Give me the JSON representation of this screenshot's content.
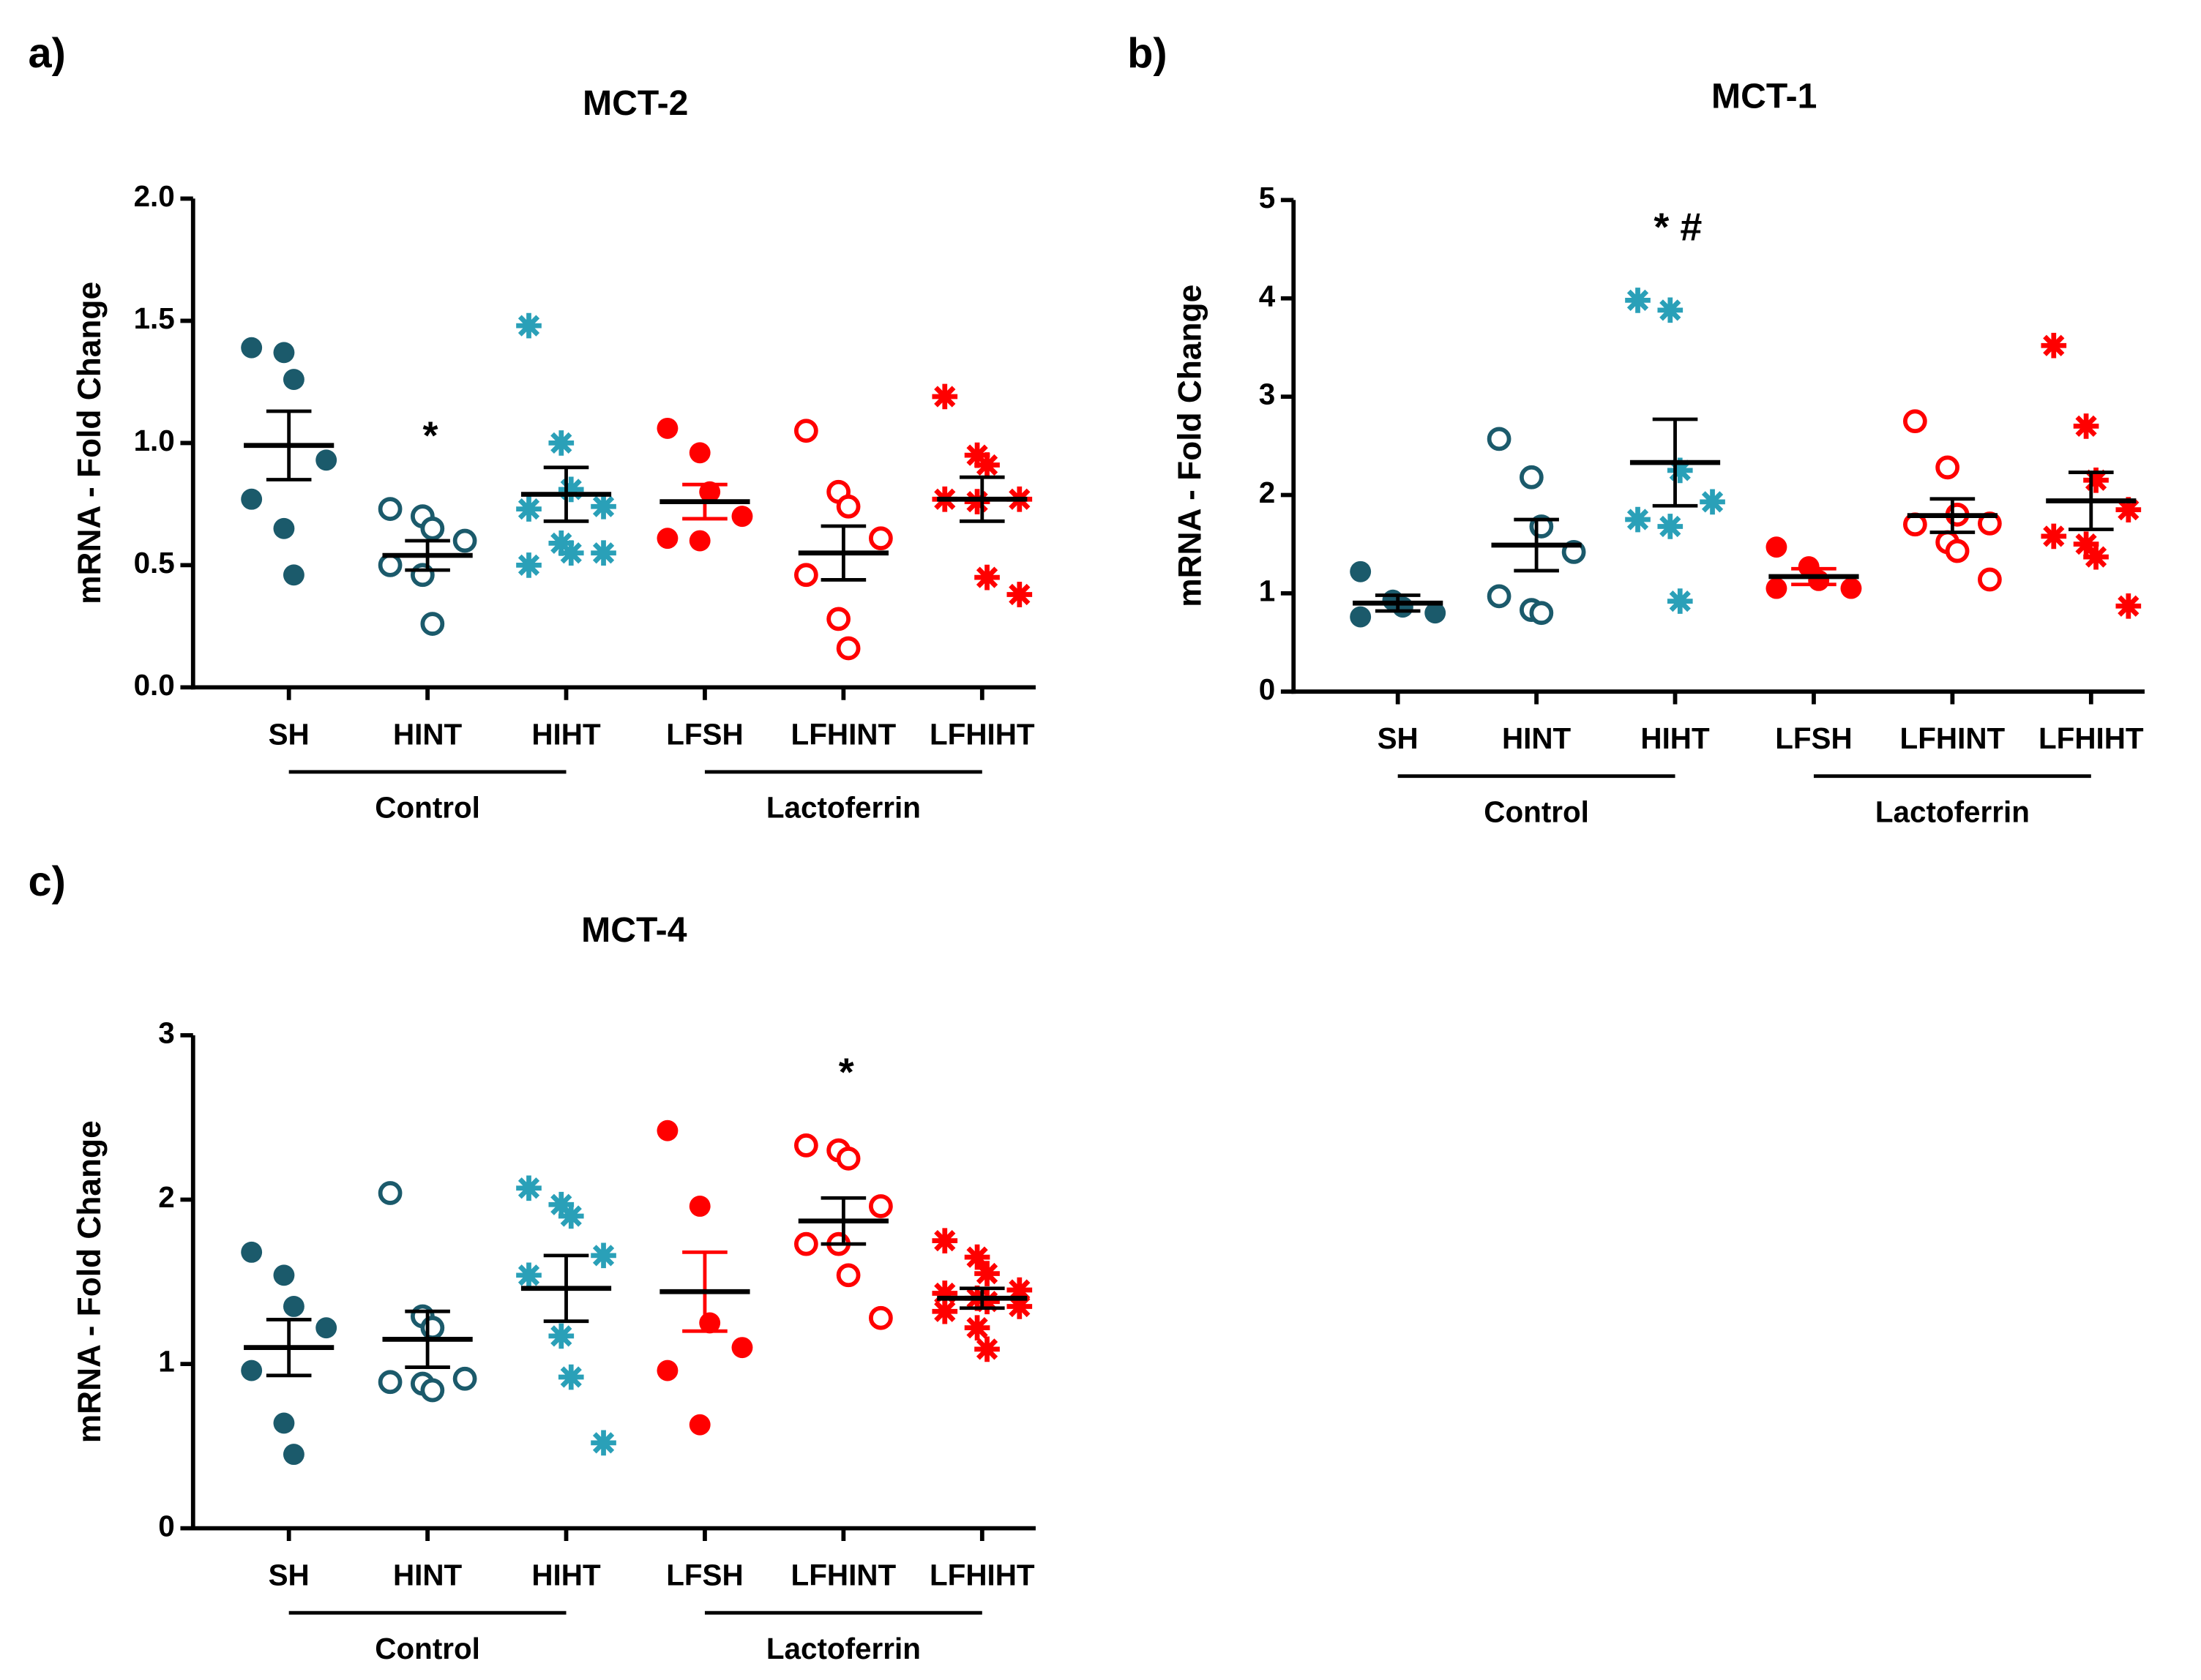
{
  "chart_data": [
    {
      "type": "dot",
      "panel_label": "a)",
      "title": "MCT-2",
      "ylabel": "mRNA - Fold Change",
      "ylim": [
        0,
        2
      ],
      "yticks": [
        {
          "value": 0,
          "label": "0.0"
        },
        {
          "value": 0.5,
          "label": "0.5"
        },
        {
          "value": 1,
          "label": "1.0"
        },
        {
          "value": 1.5,
          "label": "1.5"
        },
        {
          "value": 2,
          "label": "2.0"
        }
      ],
      "categories": [
        "SH",
        "HINT",
        "HIHT",
        "LFSH",
        "LFHINT",
        "LFHIHT"
      ],
      "colors": [
        "#1b5a6b",
        "#1b5a6b",
        "#2aa0b8",
        "#ff0000",
        "#ff0000",
        "#ff0000"
      ],
      "markers": [
        "filled",
        "open",
        "asterisk",
        "filled",
        "open",
        "asterisk"
      ],
      "values": [
        [
          1.39,
          1.37,
          1.26,
          0.93,
          0.77,
          0.65,
          0.46
        ],
        [
          0.73,
          0.7,
          0.65,
          0.6,
          0.5,
          0.46,
          0.26
        ],
        [
          1.48,
          1.0,
          0.81,
          0.74,
          0.73,
          0.59,
          0.55,
          0.55,
          0.5
        ],
        [
          1.06,
          0.96,
          0.8,
          0.7,
          0.61,
          0.6
        ],
        [
          1.05,
          0.8,
          0.74,
          0.61,
          0.46,
          0.28,
          0.16
        ],
        [
          1.19,
          0.95,
          0.91,
          0.77,
          0.77,
          0.76,
          0.45,
          0.38
        ]
      ],
      "means": [
        0.99,
        0.54,
        0.79,
        0.76,
        0.55,
        0.77
      ],
      "sems": [
        0.14,
        0.06,
        0.11,
        0.07,
        0.11,
        0.09
      ],
      "groups": [
        {
          "label": "Control",
          "color": "#1d9bb5",
          "span": [
            0,
            2
          ]
        },
        {
          "label": "Lactoferrin",
          "color": "#ff0000",
          "span": [
            3,
            5
          ]
        }
      ],
      "annotations": [
        {
          "text": "*",
          "category": 1
        }
      ]
    },
    {
      "type": "dot",
      "panel_label": "b)",
      "title": "MCT-1",
      "ylabel": "mRNA - Fold Change",
      "ylim": [
        0,
        5
      ],
      "yticks": [
        0,
        1,
        2,
        3,
        4,
        5
      ],
      "categories": [
        "SH",
        "HINT",
        "HIHT",
        "LFSH",
        "LFHINT",
        "LFHIHT"
      ],
      "colors": [
        "#1b5a6b",
        "#1b5a6b",
        "#2aa0b8",
        "#ff0000",
        "#ff0000",
        "#ff0000"
      ],
      "markers": [
        "filled",
        "open",
        "asterisk",
        "filled",
        "open",
        "asterisk"
      ],
      "values": [
        [
          1.22,
          0.93,
          0.86,
          0.8,
          0.76
        ],
        [
          2.57,
          2.18,
          1.68,
          1.42,
          0.97,
          0.83,
          0.8
        ],
        [
          3.98,
          3.88,
          2.25,
          1.93,
          1.75,
          1.68,
          0.92
        ],
        [
          1.47,
          1.27,
          1.13,
          1.05,
          1.05
        ],
        [
          2.75,
          2.28,
          1.8,
          1.71,
          1.7,
          1.52,
          1.43,
          1.14
        ],
        [
          3.52,
          2.7,
          2.15,
          1.85,
          1.58,
          1.5,
          1.37,
          0.87
        ]
      ],
      "means": [
        0.9,
        1.49,
        2.33,
        1.17,
        1.79,
        1.94
      ],
      "sems": [
        0.08,
        0.26,
        0.44,
        0.08,
        0.17,
        0.29
      ],
      "groups": [
        {
          "label": "Control",
          "color": "#1d9bb5",
          "span": [
            0,
            2
          ]
        },
        {
          "label": "Lactoferrin",
          "color": "#ff0000",
          "span": [
            3,
            5
          ]
        }
      ],
      "annotations": [
        {
          "text": "* #",
          "category": 2
        }
      ]
    },
    {
      "type": "dot",
      "panel_label": "c)",
      "title": "MCT-4",
      "ylabel": "mRNA - Fold Change",
      "ylim": [
        0,
        3
      ],
      "yticks": [
        0,
        1,
        2,
        3
      ],
      "categories": [
        "SH",
        "HINT",
        "HIHT",
        "LFSH",
        "LFHINT",
        "LFHIHT"
      ],
      "colors": [
        "#1b5a6b",
        "#1b5a6b",
        "#2aa0b8",
        "#ff0000",
        "#ff0000",
        "#ff0000"
      ],
      "markers": [
        "filled",
        "open",
        "asterisk",
        "filled",
        "open",
        "asterisk"
      ],
      "values": [
        [
          1.68,
          1.54,
          1.35,
          1.22,
          0.96,
          0.64,
          0.45
        ],
        [
          2.04,
          1.29,
          1.22,
          0.91,
          0.89,
          0.88,
          0.84
        ],
        [
          2.07,
          1.97,
          1.9,
          1.66,
          1.54,
          1.17,
          0.92,
          0.52
        ],
        [
          2.42,
          1.96,
          1.25,
          1.1,
          0.96,
          0.63
        ],
        [
          2.33,
          2.3,
          2.25,
          1.96,
          1.73,
          1.73,
          1.54,
          1.28
        ],
        [
          1.75,
          1.65,
          1.55,
          1.45,
          1.43,
          1.4,
          1.38,
          1.35,
          1.32,
          1.22,
          1.09
        ]
      ],
      "means": [
        1.1,
        1.15,
        1.46,
        1.44,
        1.87,
        1.4
      ],
      "sems": [
        0.17,
        0.17,
        0.2,
        0.24,
        0.14,
        0.06
      ],
      "groups": [
        {
          "label": "Control",
          "color": "#000000",
          "span": [
            0,
            2
          ]
        },
        {
          "label": "Lactoferrin",
          "color": "#000000",
          "span": [
            3,
            5
          ]
        }
      ],
      "annotations": [
        {
          "text": "*",
          "category": 4
        }
      ]
    }
  ]
}
